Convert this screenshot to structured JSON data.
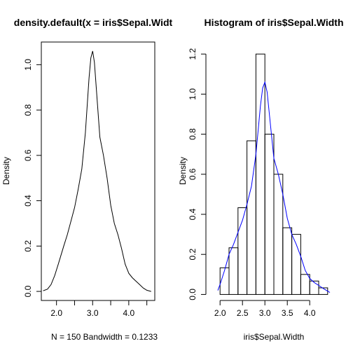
{
  "chart_data": [
    {
      "type": "line",
      "title": "density.default(x = iris$Sepal.Widt",
      "xlabel": "N = 150   Bandwidth = 0.1233",
      "ylabel": "Density",
      "xlim": [
        1.58,
        4.72
      ],
      "ylim": [
        -0.04,
        1.1
      ],
      "xticks": [
        2.0,
        2.5,
        3.0,
        3.5,
        4.0,
        4.5
      ],
      "xtick_labels": [
        "2.0",
        "",
        "3.0",
        "",
        "4.0",
        ""
      ],
      "yticks": [
        0.0,
        0.2,
        0.4,
        0.6,
        0.8,
        1.0
      ],
      "ytick_labels": [
        "0.0",
        "0.2",
        "0.4",
        "0.6",
        "0.8",
        "1.0"
      ],
      "grid": false,
      "line_color": "#000000",
      "x": [
        1.63,
        1.75,
        1.85,
        1.95,
        2.05,
        2.2,
        2.3,
        2.4,
        2.5,
        2.6,
        2.7,
        2.8,
        2.9,
        2.95,
        3.0,
        3.05,
        3.1,
        3.2,
        3.3,
        3.4,
        3.5,
        3.6,
        3.7,
        3.8,
        3.9,
        4.0,
        4.1,
        4.2,
        4.3,
        4.4,
        4.5,
        4.62
      ],
      "y": [
        0.003,
        0.01,
        0.03,
        0.07,
        0.12,
        0.2,
        0.25,
        0.31,
        0.37,
        0.45,
        0.54,
        0.7,
        0.94,
        1.03,
        1.06,
        1.01,
        0.9,
        0.68,
        0.6,
        0.5,
        0.38,
        0.3,
        0.25,
        0.19,
        0.12,
        0.08,
        0.06,
        0.045,
        0.03,
        0.015,
        0.005,
        0.0
      ]
    },
    {
      "type": "bar",
      "title": "Histogram of iris$Sepal.Width",
      "xlabel": "iris$Sepal.Width",
      "ylabel": "Density",
      "xlim": [
        1.95,
        4.45
      ],
      "ylim": [
        -0.03,
        1.26
      ],
      "xticks": [
        2.0,
        2.5,
        3.0,
        3.5,
        4.0
      ],
      "xtick_labels": [
        "2.0",
        "2.5",
        "3.0",
        "3.5",
        "4.0"
      ],
      "yticks": [
        0.0,
        0.2,
        0.4,
        0.6,
        0.8,
        1.0,
        1.2
      ],
      "ytick_labels": [
        "0.0",
        "0.2",
        "0.4",
        "0.6",
        "0.8",
        "1.0",
        "1.2"
      ],
      "grid": false,
      "bin_edges": [
        2.0,
        2.2,
        2.4,
        2.6,
        2.8,
        3.0,
        3.2,
        3.4,
        3.6,
        3.8,
        4.0,
        4.2,
        4.4
      ],
      "values": [
        0.133,
        0.233,
        0.433,
        0.767,
        1.2,
        0.8,
        0.6,
        0.333,
        0.3,
        0.1,
        0.067,
        0.033
      ],
      "density_overlay": {
        "color": "#0000ff",
        "x": [
          1.95,
          2.0,
          2.1,
          2.2,
          2.3,
          2.4,
          2.5,
          2.6,
          2.7,
          2.8,
          2.9,
          2.95,
          3.0,
          3.05,
          3.1,
          3.2,
          3.3,
          3.4,
          3.5,
          3.6,
          3.7,
          3.8,
          3.9,
          4.0,
          4.1,
          4.2,
          4.3,
          4.45
        ],
        "y": [
          0.02,
          0.05,
          0.12,
          0.2,
          0.25,
          0.31,
          0.37,
          0.45,
          0.54,
          0.7,
          0.94,
          1.03,
          1.06,
          1.01,
          0.9,
          0.68,
          0.6,
          0.5,
          0.38,
          0.3,
          0.25,
          0.19,
          0.12,
          0.08,
          0.06,
          0.045,
          0.03,
          0.01
        ]
      }
    }
  ]
}
